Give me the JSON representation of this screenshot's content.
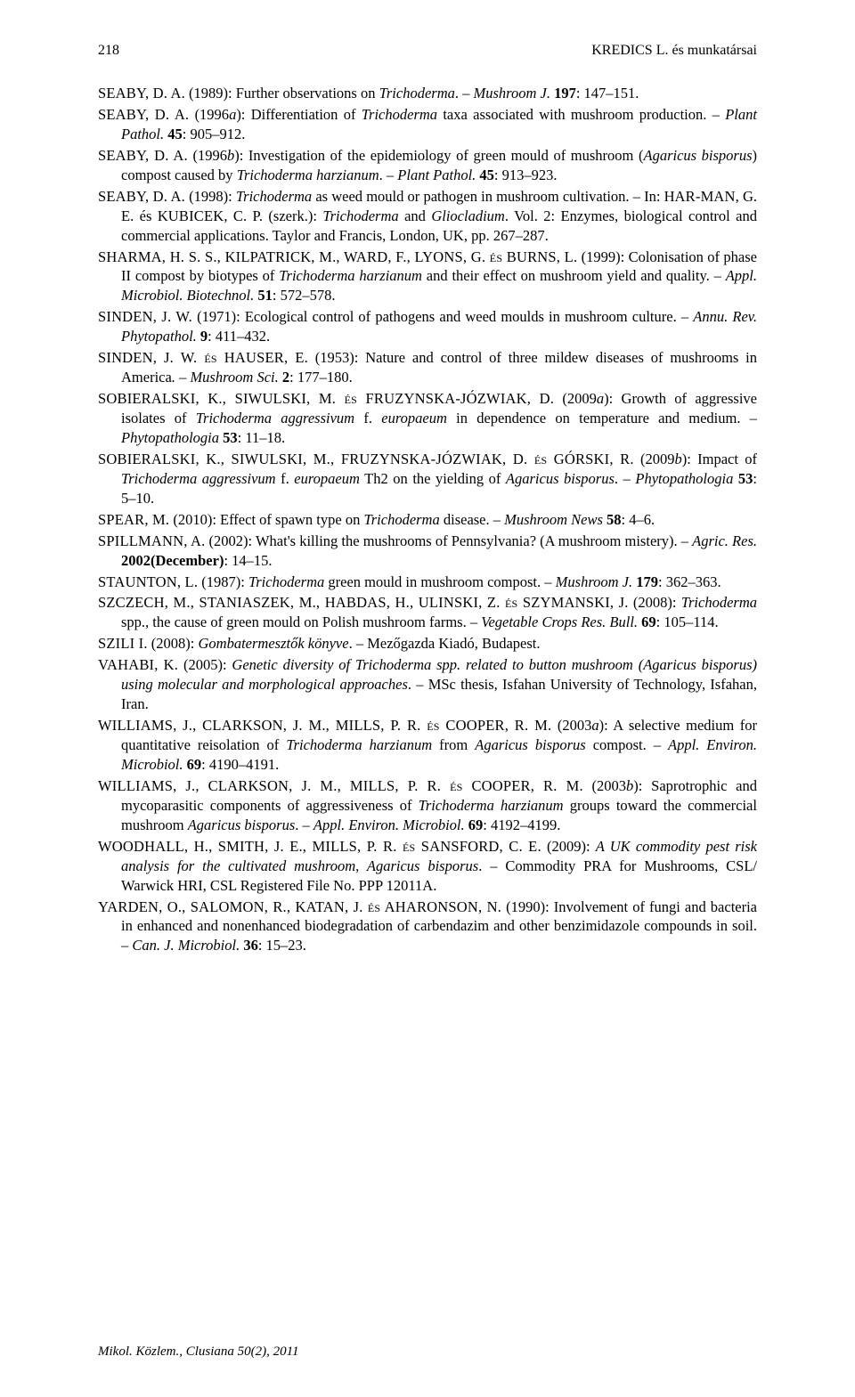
{
  "header": {
    "page_number": "218",
    "running_head": "KREDICS L. és munkatársai"
  },
  "footer": "Mikol. Közlem., Clusiana 50(2), 2011",
  "refs": [
    {
      "authors": "SEABY, D. A.",
      "text": " (1989): Further observations on ",
      "it1": "Trichoderma",
      "mid": ". – ",
      "it2": "Mushroom J.",
      "tail": " ",
      "bold": "197",
      "after": ": 147–151."
    },
    {
      "authors": "SEABY, D. A.",
      "text": " (1996",
      "it1": "a",
      "mid": "): Differentiation of ",
      "it2": "Trichoderma",
      "tail": " taxa associated with mushroom production. – ",
      "it3": "Plant Pathol. ",
      "bold": "45",
      "after": ": 905–912."
    },
    {
      "authors": "SEABY, D. A.",
      "text": " (1996",
      "it1": "b",
      "mid": "): Investigation of the epidemiology of green mould of mushroom (",
      "it2": "Agaricus bisporus",
      "tail": ") compost caused by ",
      "it3": "Trichoderma harzianum",
      "tail2": ". – ",
      "it4": "Plant Pathol. ",
      "bold": "45",
      "after": ": 913–923."
    },
    {
      "authors": "SEABY, D. A.",
      "text": " (1998): ",
      "it1": "Trichoderma",
      "mid": " as weed mould or pathogen in mushroom cultivation. – In: H",
      "sc1": "AR-MAN",
      "mid2": ", G. E. és K",
      "sc2": "UBICEK",
      "mid3": ", C. P. (szerk.): ",
      "it2": "Trichoderma ",
      "mid4": "and ",
      "it3": "Gliocladium",
      "tail": ". Vol. 2: Enzymes, biological control and commercial applications. Taylor and Francis, London, UK, pp. 267–287."
    },
    {
      "authors": "SHARMA, H. S. S., KILPATRICK, M., WARD, F., LYONS, G. és BURNS, L.",
      "text": " (1999): Colonisation of phase II compost by biotypes of ",
      "it1": "Trichoderma harzianum",
      "mid": " and their effect on mushroom yield and quality. – ",
      "it2": "Appl. Microbiol. Biotechnol. ",
      "bold": "51",
      "after": ": 572–578."
    },
    {
      "authors": "SINDEN, J. W.",
      "text": " (1971): Ecological control of pathogens and weed moulds in mushroom culture. – ",
      "it1": "Annu. Rev. Phytopathol. ",
      "bold": "9",
      "after": ": 411–432."
    },
    {
      "authors": "SINDEN, J. W. és HAUSER, E.",
      "text": " (1953): Nature and control of three mildew diseases of mushrooms in America",
      "it1": ". – Mushroom Sci. ",
      "bold": "2",
      "after": ": 177–180."
    },
    {
      "authors": "SOBIERALSKI, K., SIWULSKI, M. és FRUZYNSKA-JÓZWIAK, D.",
      "text": " (2009",
      "it1": "a",
      "mid": "): Growth of aggressive isolates of ",
      "it2": "Trichoderma aggressivum",
      "mid2": " f. ",
      "it3": "europaeum",
      "tail": " in dependence on temperature and medium. – ",
      "it4": "Phytopathologia ",
      "bold": "53",
      "after": ": 11–18."
    },
    {
      "authors": "SOBIERALSKI, K., SIWULSKI, M., FRUZYNSKA-JÓZWIAK, D. és GÓRSKI, R.",
      "text": " (2009",
      "it1": "b",
      "mid": "): Impact of ",
      "it2": "Tricho­derma aggressivum",
      "mid2": " f. ",
      "it3": "europaeum",
      "tail": " Th2 on the yielding of ",
      "it4": "Agaricus bisporus",
      "tail2": ". – ",
      "it5": "Phytopathologia ",
      "bold": "53",
      "after": ": 5–10."
    },
    {
      "authors": "SPEAR, M.",
      "text": " (2010): Effect of spawn type on ",
      "it1": "Trichoderma",
      "mid": " disease. – ",
      "it2": "Mushroom News ",
      "bold": "58",
      "after": ": 4–6."
    },
    {
      "authors": "SPILLMANN, A.",
      "text": " (2002): What's killing the mushrooms of Pennsylvania? (A mushroom mistery). – ",
      "it1": "Agric. Res. ",
      "bold": "2002(December)",
      "after": ": 14–15."
    },
    {
      "authors": "STAUNTON, L.",
      "text": " (1987): ",
      "it1": "Trichoderma",
      "mid": " green mould in mushroom compost. – ",
      "it2": "Mushroom J. ",
      "bold": "179",
      "after": ": 362–363."
    },
    {
      "authors": "SZCZECH, M., STANIASZEK, M., HABDAS, H., ULINSKI, Z. és SZYMANSKI, J.",
      "text": " (2008): ",
      "it1": "Trichoderma",
      "mid": " spp., the cause of green mould on Polish mushroom farms. – ",
      "it2": "Vegetable Crops Res. Bull. ",
      "bold": "69",
      "after": ": 105–114."
    },
    {
      "authors": "SZILI I.",
      "text": " (2008): ",
      "it1": "Gombatermesztők könyve",
      "mid": ". – Mezőgazda Kiadó, Budapest."
    },
    {
      "authors": "VAHABI, K.",
      "text": " (2005): ",
      "it1": "Genetic diversity of Trichoderma spp. related to button mushroom (Agaricus bisporus) using molecular and morphological approaches",
      "mid": ". – MSc thesis, Isfahan University of Technology, Isfahan, Iran."
    },
    {
      "authors": "WILLIAMS, J., CLARKSON, J. M., MILLS, P. R. és COOPER, R. M.",
      "text": " (2003",
      "it1": "a",
      "mid": "): A selective medium for quantitative reisolation of ",
      "it2": "Trichoderma harzianum",
      "tail": " from ",
      "it3": "Agaricus bisporus",
      "tail2": " compost. – ",
      "it4": "Appl. Environ. Microbiol. ",
      "bold": "69",
      "after": ": 4190–4191."
    },
    {
      "authors": "WILLIAMS, J., CLARKSON, J. M., MILLS, P. R. és COOPER, R. M.",
      "text": " (2003",
      "it1": "b",
      "mid": "): Saprotrophic and mycoparasitic components of aggressiveness of ",
      "it2": "Trichoderma harzianum",
      "tail": " groups toward the commercial mushroom ",
      "it3": "Agaricus bisporus",
      "tail2": ". – ",
      "it4": "Appl. Environ. Microbiol. ",
      "bold": "69",
      "after": ": 4192–4199."
    },
    {
      "authors": "WOODHALL, H., SMITH, J. E., MILLS, P. R. és SANSFORD, C. E.",
      "text": " (2009): ",
      "it1": "A UK commodity pest risk analysis for the cultivated mushroom, Agaricus bisporus",
      "mid": ". – Commodity PRA for Mushrooms, CSL/ Warwick HRI, CSL Registered File No. PPP 12011A."
    },
    {
      "authors": "YARDEN, O., SALOMON, R., KATAN, J. és AHARONSON, N.",
      "text": " (1990): Involvement of fungi and bacteria in enhanced and nonenhanced biodegradation of carbendazim and other benzimidazole compounds in soil. – ",
      "it1": "Can. J. Microbiol. ",
      "bold": "36",
      "after": ": 15–23."
    }
  ]
}
